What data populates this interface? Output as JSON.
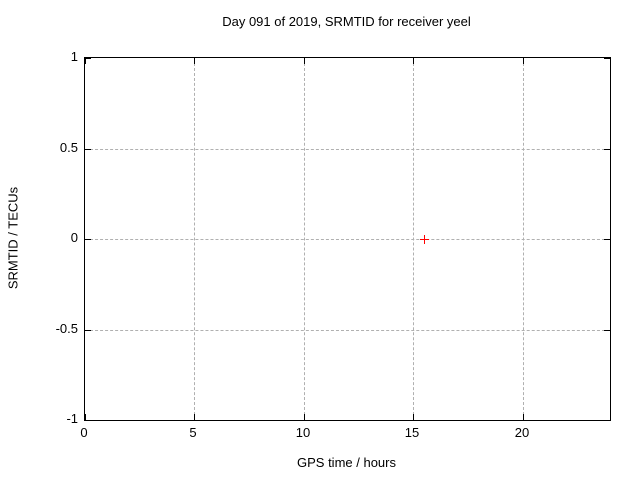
{
  "window": {
    "background": "#ffffff"
  },
  "chart_data": {
    "type": "scatter",
    "title": "Day 091 of 2019, SRMTID for receiver yeel",
    "xlabel": "GPS time / hours",
    "ylabel": "SRMTID / TECUs",
    "xlim": [
      0,
      24
    ],
    "ylim": [
      -1,
      1
    ],
    "xticks": [
      0,
      5,
      10,
      15,
      20
    ],
    "yticks": [
      1,
      0.5,
      0,
      -0.5,
      -1
    ],
    "grid": true,
    "legend": "none",
    "series": [
      {
        "name": "SRMTID",
        "marker": "plus",
        "color": "#ff0000",
        "points": [
          {
            "x": 15.5,
            "y": 0.0
          }
        ]
      }
    ]
  },
  "colors": {
    "border": "#000000",
    "grid": "#b0b0b0",
    "text": "#000000",
    "marker": "#ff0000"
  }
}
